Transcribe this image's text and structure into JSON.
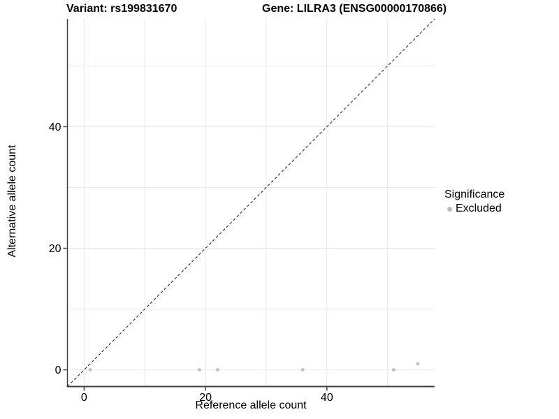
{
  "chart_data": {
    "type": "scatter",
    "title_left": "Variant: rs199831670",
    "title_right": "Gene: LILRA3 (ENSG00000170866)",
    "xlabel": "Reference allele count",
    "ylabel": "Alternative allele count",
    "xlim": [
      -2.75,
      57.75
    ],
    "ylim": [
      -2.75,
      57.75
    ],
    "x_ticks": [
      0,
      20,
      40
    ],
    "y_ticks": [
      0,
      20,
      40
    ],
    "grid": true,
    "grid_interval": 10,
    "identity_line": {
      "equation": "y = x",
      "style": "dashed",
      "color": "#1a1a1a"
    },
    "series": [
      {
        "name": "Excluded",
        "color": "#bebebe",
        "points": [
          {
            "x": 1,
            "y": 0
          },
          {
            "x": 19,
            "y": 0
          },
          {
            "x": 22,
            "y": 0
          },
          {
            "x": 36,
            "y": 0
          },
          {
            "x": 51,
            "y": 0
          },
          {
            "x": 55,
            "y": 1
          }
        ]
      }
    ],
    "legend": {
      "title": "Significance",
      "position": "right",
      "entries": [
        {
          "label": "Excluded",
          "color": "#bebebe"
        }
      ]
    },
    "colors": {
      "background": "#ffffff",
      "grid": "#e8e8e8",
      "axis_line": "#404040",
      "tick_label": "#000000",
      "point": "#bebebe"
    }
  }
}
